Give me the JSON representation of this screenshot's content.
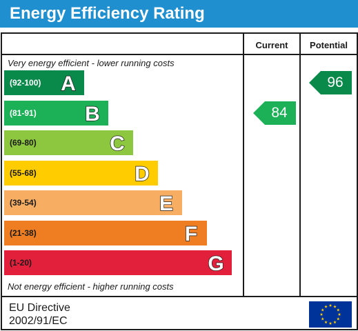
{
  "header": {
    "title": "Energy Efficiency Rating"
  },
  "columns": {
    "current_label": "Current",
    "potential_label": "Potential"
  },
  "notes": {
    "top": "Very energy efficient - lower running costs",
    "bottom": "Not energy efficient - higher running costs"
  },
  "footer": {
    "line1": "EU Directive",
    "line2": "2002/91/EC",
    "flag_icon": "eu-flag-icon"
  },
  "chart_data": {
    "type": "bar",
    "title": "Energy Efficiency Rating",
    "bands": [
      {
        "letter": "A",
        "range": "(92-100)",
        "color": "#0a8a4a",
        "range_color": "#ffffff",
        "width_fraction": 0.34
      },
      {
        "letter": "B",
        "range": "(81-91)",
        "color": "#1cb057",
        "range_color": "#ffffff",
        "width_fraction": 0.445
      },
      {
        "letter": "C",
        "range": "(69-80)",
        "color": "#8dc63f",
        "range_color": "#1a1a1a",
        "width_fraction": 0.55
      },
      {
        "letter": "D",
        "range": "(55-68)",
        "color": "#ffcc00",
        "range_color": "#1a1a1a",
        "width_fraction": 0.655
      },
      {
        "letter": "E",
        "range": "(39-54)",
        "color": "#f7ae63",
        "range_color": "#1a1a1a",
        "width_fraction": 0.76
      },
      {
        "letter": "F",
        "range": "(21-38)",
        "color": "#ef7d22",
        "range_color": "#1a1a1a",
        "width_fraction": 0.865
      },
      {
        "letter": "G",
        "range": "(1-20)",
        "color": "#e2203b",
        "range_color": "#1a1a1a",
        "width_fraction": 0.97
      }
    ],
    "ratings": [
      {
        "name": "Current",
        "value": 84,
        "band": "B",
        "color": "#1cb057"
      },
      {
        "name": "Potential",
        "value": 96,
        "band": "A",
        "color": "#0a8a4a"
      }
    ]
  }
}
